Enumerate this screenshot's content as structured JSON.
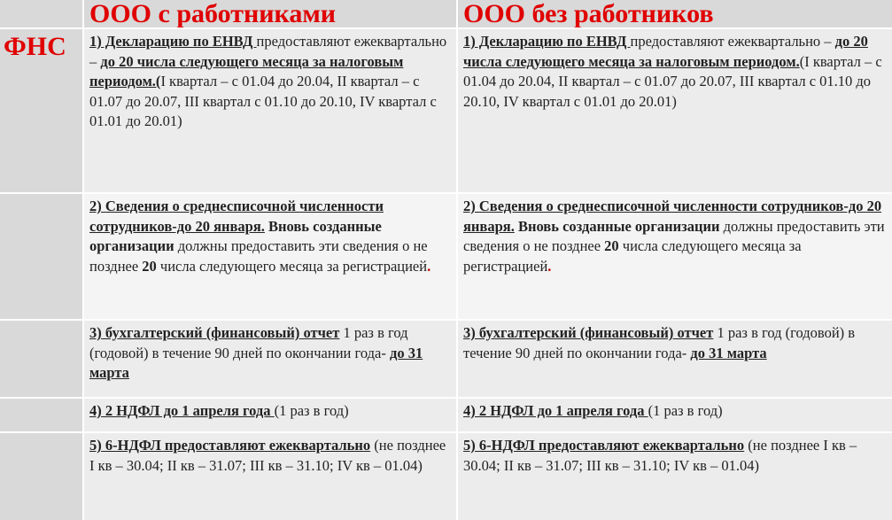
{
  "header": {
    "col_with": "ООО с работниками",
    "col_without": "ООО без работников"
  },
  "side_label": "ФНС",
  "accent_color": "#e00000",
  "rows": [
    {
      "left": [
        {
          "s": "bu",
          "t": "1) Декларацию по ЕНВД "
        },
        {
          "s": "n",
          "t": "предоставляют ежеквартально – "
        },
        {
          "s": "bu",
          "t": "до 20 числа следующего месяца за налоговым периодом.("
        },
        {
          "s": "n",
          "t": "I квартал – с 01.04 до 20.04,  II квартал – с 01.07  до 20.07, III квартал с 01.10 до 20.10, IV квартал с 01.01 до 20.01)"
        }
      ],
      "right": [
        {
          "s": "bu",
          "t": "1) Декларацию по ЕНВД "
        },
        {
          "s": "n",
          "t": "предоставляют ежеквартально – "
        },
        {
          "s": "bu",
          "t": "до 20 числа следующего месяца за налоговым периодом."
        },
        {
          "s": "n",
          "t": "(I квартал – с 01.04 до 20.04,  II квартал – с 01.07  до 20.07, III квартал с 01.10 до 20.10, IV квартал с 01.01 до 20.01)"
        }
      ]
    },
    {
      "left": [
        {
          "s": "bu",
          "t": "2) Сведения о среднесписочной численности сотрудников-до 20 января."
        },
        {
          "s": "b",
          "t": " Вновь созданные организации"
        },
        {
          "s": "n",
          "t": " должны предоставить эти сведения о  не позднее "
        },
        {
          "s": "b",
          "t": "20"
        },
        {
          "s": "n",
          "t": " числа следующего месяца за регистрацией"
        },
        {
          "s": "red",
          "t": "."
        }
      ],
      "right": [
        {
          "s": "bu",
          "t": "2) Сведения о среднесписочной численности сотрудников-до 20 января."
        },
        {
          "s": "b",
          "t": " Вновь созданные организации"
        },
        {
          "s": "n",
          "t": " должны предоставить эти сведения о  не позднее "
        },
        {
          "s": "b",
          "t": "20"
        },
        {
          "s": "n",
          "t": " числа следующего месяца за регистрацией"
        },
        {
          "s": "red",
          "t": "."
        }
      ]
    },
    {
      "left": [
        {
          "s": "bu",
          "t": "3) бухгалтерский  (финансовый) отчет"
        },
        {
          "s": "n",
          "t": " 1 раз в год (годовой) в течение 90 дней по окончании года- "
        },
        {
          "s": "bu",
          "t": "до 31 марта"
        }
      ],
      "right": [
        {
          "s": "bu",
          "t": "3) бухгалтерский  (финансовый) отчет"
        },
        {
          "s": "n",
          "t": " 1 раз в год (годовой) в течение 90 дней по окончании года- "
        },
        {
          "s": "bu",
          "t": "до 31 марта"
        }
      ]
    },
    {
      "left": [
        {
          "s": "bu",
          "t": "4) 2 НДФЛ  до 1 апреля года "
        },
        {
          "s": "n",
          "t": "(1 раз в год)"
        }
      ],
      "right": [
        {
          "s": "bu",
          "t": "4) 2 НДФЛ  до 1 апреля года "
        },
        {
          "s": "n",
          "t": "(1 раз в год)"
        }
      ]
    },
    {
      "left": [
        {
          "s": "bu",
          "t": "5) 6-НДФЛ предоставляют ежеквартально"
        },
        {
          "s": "n",
          "t": " (не позднее I кв – 30.04; II кв – 31.07; III кв – 31.10;   IV кв – 01.04)"
        }
      ],
      "right": [
        {
          "s": "bu",
          "t": "5) 6-НДФЛ предоставляют ежеквартально"
        },
        {
          "s": "n",
          "t": " (не позднее I кв – 30.04; II кв – 31.07; III кв – 31.10;         IV кв – 01.04)"
        }
      ]
    }
  ]
}
